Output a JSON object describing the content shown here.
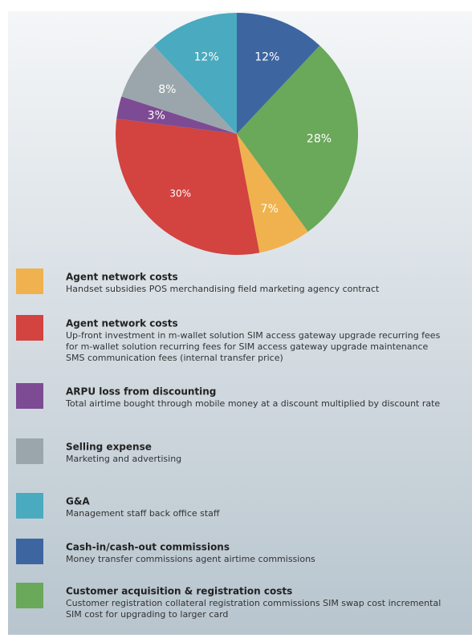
{
  "chart_data": {
    "type": "pie",
    "categories": [
      "Cash-in/cash-out commissions",
      "Customer acquisition & registration costs",
      "Agent network costs",
      "Agent network costs",
      "ARPU loss from discounting",
      "Selling expense",
      "G&A"
    ],
    "descriptions": [
      [
        "Money transfer commissions agent airtime commissions"
      ],
      [
        "Customer registration collateral registration commissions SIM swap cost incremental",
        "SIM cost for upgrading to larger card"
      ],
      [
        "Handset subsidies POS merchandising field marketing agency contract"
      ],
      [
        "Up-front investment in m-wallet solution SIM access gateway upgrade recurring fees",
        "for m-wallet solution recurring fees for SIM access gateway upgrade maintenance",
        "SMS communication fees (internal transfer price)"
      ],
      [
        "Total airtime bought through mobile money at a discount multiplied by discount rate"
      ],
      [
        "Marketing and advertising"
      ],
      [
        "Management staff back office staff"
      ]
    ],
    "values": [
      12,
      28,
      7,
      30,
      3,
      8,
      12
    ],
    "value_labels": [
      "12%",
      "28%",
      "7%",
      "30%",
      "3%",
      "8%",
      "12%"
    ],
    "colors": [
      "#3d66a0",
      "#6aa85a",
      "#efb24e",
      "#d3433f",
      "#7d4b93",
      "#9aa6ac",
      "#4aaabf"
    ]
  }
}
